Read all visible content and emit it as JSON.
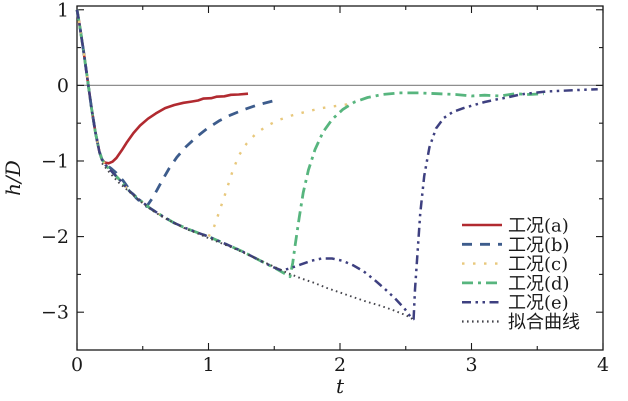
{
  "figure": {
    "background": "#ffffff",
    "axis_color": "#1a1a1a",
    "zero_line_color": "#8e8e8e"
  },
  "chart_data": {
    "type": "line",
    "title": "",
    "xlabel": "t",
    "ylabel": "h/D",
    "xlim": [
      0,
      4
    ],
    "ylim": [
      -3.5,
      1.05
    ],
    "xticks": [
      0,
      1,
      2,
      3,
      4
    ],
    "xminorticks": [
      0.5,
      1.5,
      2.5,
      3.5
    ],
    "yticks": [
      1,
      0,
      -1,
      -2,
      -3
    ],
    "yminorticks": [
      0.5,
      -0.5,
      -1.5,
      -2.5
    ],
    "grid": false,
    "zero_line_y": 0,
    "legend_position": "lower right",
    "series": [
      {
        "id": "a",
        "name": "工况(a)",
        "color": "#b12a30",
        "style": "solid",
        "points": [
          [
            0,
            1.0
          ],
          [
            0.02,
            0.8
          ],
          [
            0.05,
            0.45
          ],
          [
            0.08,
            0.08
          ],
          [
            0.11,
            -0.3
          ],
          [
            0.14,
            -0.62
          ],
          [
            0.17,
            -0.88
          ],
          [
            0.19,
            -0.98
          ],
          [
            0.21,
            -1.02
          ],
          [
            0.24,
            -1.03
          ],
          [
            0.27,
            -1.01
          ],
          [
            0.3,
            -0.96
          ],
          [
            0.34,
            -0.86
          ],
          [
            0.38,
            -0.75
          ],
          [
            0.43,
            -0.63
          ],
          [
            0.48,
            -0.53
          ],
          [
            0.54,
            -0.44
          ],
          [
            0.6,
            -0.37
          ],
          [
            0.67,
            -0.3
          ],
          [
            0.74,
            -0.26
          ],
          [
            0.81,
            -0.23
          ],
          [
            0.87,
            -0.215
          ],
          [
            0.92,
            -0.2
          ],
          [
            0.96,
            -0.175
          ],
          [
            1.02,
            -0.17
          ],
          [
            1.06,
            -0.15
          ],
          [
            1.12,
            -0.145
          ],
          [
            1.17,
            -0.125
          ],
          [
            1.23,
            -0.12
          ],
          [
            1.3,
            -0.11
          ]
        ]
      },
      {
        "id": "b",
        "name": "工况(b)",
        "color": "#3d5c8c",
        "style": "dashed",
        "points": [
          [
            0,
            1.0
          ],
          [
            0.02,
            0.8
          ],
          [
            0.05,
            0.45
          ],
          [
            0.08,
            0.08
          ],
          [
            0.11,
            -0.3
          ],
          [
            0.14,
            -0.62
          ],
          [
            0.17,
            -0.88
          ],
          [
            0.19,
            -0.98
          ],
          [
            0.22,
            -1.05
          ],
          [
            0.26,
            -1.1
          ],
          [
            0.3,
            -1.16
          ],
          [
            0.35,
            -1.26
          ],
          [
            0.4,
            -1.38
          ],
          [
            0.45,
            -1.49
          ],
          [
            0.5,
            -1.57
          ],
          [
            0.53,
            -1.6
          ],
          [
            0.57,
            -1.5
          ],
          [
            0.61,
            -1.38
          ],
          [
            0.65,
            -1.25
          ],
          [
            0.7,
            -1.1
          ],
          [
            0.76,
            -0.95
          ],
          [
            0.83,
            -0.81
          ],
          [
            0.91,
            -0.68
          ],
          [
            0.99,
            -0.57
          ],
          [
            1.08,
            -0.47
          ],
          [
            1.17,
            -0.39
          ],
          [
            1.27,
            -0.32
          ],
          [
            1.37,
            -0.26
          ],
          [
            1.46,
            -0.22
          ],
          [
            1.53,
            -0.19
          ]
        ]
      },
      {
        "id": "c",
        "name": "工况(c)",
        "color": "#e8c87c",
        "style": "dotted-sparse",
        "points": [
          [
            0,
            1.0
          ],
          [
            0.02,
            0.8
          ],
          [
            0.05,
            0.45
          ],
          [
            0.08,
            0.08
          ],
          [
            0.11,
            -0.3
          ],
          [
            0.14,
            -0.62
          ],
          [
            0.17,
            -0.88
          ],
          [
            0.19,
            -0.98
          ],
          [
            0.22,
            -1.06
          ],
          [
            0.27,
            -1.15
          ],
          [
            0.33,
            -1.26
          ],
          [
            0.4,
            -1.4
          ],
          [
            0.48,
            -1.52
          ],
          [
            0.56,
            -1.63
          ],
          [
            0.65,
            -1.73
          ],
          [
            0.74,
            -1.82
          ],
          [
            0.83,
            -1.89
          ],
          [
            0.92,
            -1.95
          ],
          [
            1.0,
            -2.0
          ],
          [
            1.04,
            -1.88
          ],
          [
            1.08,
            -1.68
          ],
          [
            1.13,
            -1.42
          ],
          [
            1.18,
            -1.15
          ],
          [
            1.23,
            -0.93
          ],
          [
            1.29,
            -0.77
          ],
          [
            1.36,
            -0.64
          ],
          [
            1.44,
            -0.54
          ],
          [
            1.53,
            -0.46
          ],
          [
            1.63,
            -0.4
          ],
          [
            1.74,
            -0.35
          ],
          [
            1.86,
            -0.3
          ],
          [
            1.98,
            -0.27
          ],
          [
            2.1,
            -0.24
          ]
        ]
      },
      {
        "id": "d",
        "name": "工况(d)",
        "color": "#57b57e",
        "style": "dashdot",
        "points": [
          [
            0,
            1.0
          ],
          [
            0.02,
            0.8
          ],
          [
            0.05,
            0.45
          ],
          [
            0.08,
            0.08
          ],
          [
            0.11,
            -0.3
          ],
          [
            0.14,
            -0.62
          ],
          [
            0.17,
            -0.88
          ],
          [
            0.19,
            -0.98
          ],
          [
            0.22,
            -1.06
          ],
          [
            0.27,
            -1.15
          ],
          [
            0.33,
            -1.26
          ],
          [
            0.4,
            -1.4
          ],
          [
            0.48,
            -1.52
          ],
          [
            0.56,
            -1.63
          ],
          [
            0.65,
            -1.73
          ],
          [
            0.74,
            -1.82
          ],
          [
            0.83,
            -1.89
          ],
          [
            0.92,
            -1.95
          ],
          [
            1.0,
            -2.0
          ],
          [
            1.08,
            -2.06
          ],
          [
            1.16,
            -2.12
          ],
          [
            1.25,
            -2.19
          ],
          [
            1.34,
            -2.27
          ],
          [
            1.43,
            -2.35
          ],
          [
            1.52,
            -2.43
          ],
          [
            1.58,
            -2.49
          ],
          [
            1.62,
            -2.53
          ],
          [
            1.64,
            -2.35
          ],
          [
            1.66,
            -2.1
          ],
          [
            1.69,
            -1.75
          ],
          [
            1.72,
            -1.42
          ],
          [
            1.76,
            -1.12
          ],
          [
            1.81,
            -0.85
          ],
          [
            1.87,
            -0.62
          ],
          [
            1.94,
            -0.45
          ],
          [
            2.02,
            -0.32
          ],
          [
            2.11,
            -0.22
          ],
          [
            2.21,
            -0.16
          ],
          [
            2.32,
            -0.12
          ],
          [
            2.45,
            -0.1
          ],
          [
            2.6,
            -0.1
          ],
          [
            2.74,
            -0.11
          ],
          [
            2.88,
            -0.12
          ],
          [
            3.0,
            -0.14
          ],
          [
            3.1,
            -0.13
          ],
          [
            3.22,
            -0.14
          ],
          [
            3.33,
            -0.11
          ],
          [
            3.44,
            -0.12
          ],
          [
            3.55,
            -0.11
          ]
        ]
      },
      {
        "id": "e",
        "name": "工况(e)",
        "color": "#3e4080",
        "style": "dashdotdot",
        "points": [
          [
            0,
            1.0
          ],
          [
            0.02,
            0.8
          ],
          [
            0.05,
            0.45
          ],
          [
            0.08,
            0.08
          ],
          [
            0.11,
            -0.3
          ],
          [
            0.14,
            -0.62
          ],
          [
            0.17,
            -0.88
          ],
          [
            0.19,
            -0.98
          ],
          [
            0.22,
            -1.06
          ],
          [
            0.27,
            -1.15
          ],
          [
            0.33,
            -1.26
          ],
          [
            0.4,
            -1.4
          ],
          [
            0.48,
            -1.52
          ],
          [
            0.56,
            -1.63
          ],
          [
            0.65,
            -1.73
          ],
          [
            0.74,
            -1.82
          ],
          [
            0.83,
            -1.89
          ],
          [
            0.92,
            -1.95
          ],
          [
            1.0,
            -2.0
          ],
          [
            1.08,
            -2.06
          ],
          [
            1.16,
            -2.12
          ],
          [
            1.25,
            -2.19
          ],
          [
            1.34,
            -2.27
          ],
          [
            1.43,
            -2.35
          ],
          [
            1.5,
            -2.41
          ],
          [
            1.56,
            -2.45
          ],
          [
            1.62,
            -2.42
          ],
          [
            1.7,
            -2.37
          ],
          [
            1.78,
            -2.32
          ],
          [
            1.86,
            -2.29
          ],
          [
            1.94,
            -2.29
          ],
          [
            2.02,
            -2.32
          ],
          [
            2.1,
            -2.38
          ],
          [
            2.18,
            -2.46
          ],
          [
            2.26,
            -2.57
          ],
          [
            2.34,
            -2.69
          ],
          [
            2.42,
            -2.82
          ],
          [
            2.49,
            -2.95
          ],
          [
            2.54,
            -3.07
          ],
          [
            2.56,
            -3.09
          ],
          [
            2.57,
            -2.7
          ],
          [
            2.59,
            -2.2
          ],
          [
            2.61,
            -1.7
          ],
          [
            2.64,
            -1.2
          ],
          [
            2.68,
            -0.82
          ],
          [
            2.73,
            -0.57
          ],
          [
            2.79,
            -0.43
          ],
          [
            2.86,
            -0.35
          ],
          [
            2.94,
            -0.3
          ],
          [
            3.02,
            -0.26
          ],
          [
            3.1,
            -0.22
          ],
          [
            3.18,
            -0.19
          ],
          [
            3.27,
            -0.16
          ],
          [
            3.37,
            -0.12
          ],
          [
            3.47,
            -0.1
          ],
          [
            3.58,
            -0.08
          ],
          [
            3.7,
            -0.07
          ],
          [
            3.83,
            -0.06
          ],
          [
            3.96,
            -0.05
          ]
        ]
      },
      {
        "id": "fit",
        "name": "拟合曲线",
        "color": "#45454c",
        "style": "dotted-fine",
        "points": [
          [
            0.19,
            -1.03
          ],
          [
            0.25,
            -1.16
          ],
          [
            0.32,
            -1.29
          ],
          [
            0.4,
            -1.41
          ],
          [
            0.48,
            -1.53
          ],
          [
            0.56,
            -1.64
          ],
          [
            0.65,
            -1.74
          ],
          [
            0.74,
            -1.82
          ],
          [
            0.83,
            -1.9
          ],
          [
            0.92,
            -1.96
          ],
          [
            1.0,
            -2.02
          ],
          [
            1.1,
            -2.09
          ],
          [
            1.2,
            -2.16
          ],
          [
            1.3,
            -2.24
          ],
          [
            1.4,
            -2.32
          ],
          [
            1.5,
            -2.4
          ],
          [
            1.6,
            -2.48
          ],
          [
            1.7,
            -2.55
          ],
          [
            1.8,
            -2.61
          ],
          [
            1.9,
            -2.68
          ],
          [
            2.0,
            -2.74
          ],
          [
            2.1,
            -2.8
          ],
          [
            2.2,
            -2.86
          ],
          [
            2.3,
            -2.91
          ],
          [
            2.4,
            -2.97
          ],
          [
            2.5,
            -3.04
          ],
          [
            2.57,
            -3.11
          ]
        ]
      }
    ]
  }
}
